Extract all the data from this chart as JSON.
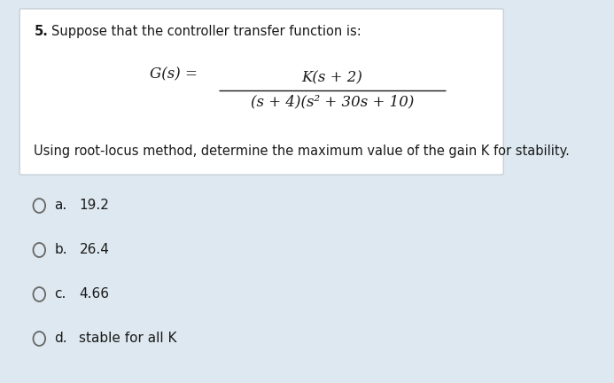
{
  "bg_color": "#dde8f0",
  "box_bg_color": "#ffffff",
  "font_color": "#1a1a1a",
  "circle_color": "#666666",
  "question_number": "5.",
  "question_text": "Suppose that the controller transfer function is:",
  "gs_label": "G(s) =",
  "numerator": "K(s + 2)",
  "denominator": "(s + 4)(s² + 30s + 10)",
  "subtext": "Using root-locus method, determine the maximum value of the gain K for stability.",
  "options": [
    {
      "letter": "a.",
      "text": "19.2"
    },
    {
      "letter": "b.",
      "text": "26.4"
    },
    {
      "letter": "c.",
      "text": "4.66"
    },
    {
      "letter": "d.",
      "text": "stable for all K"
    }
  ],
  "question_fontsize": 10.5,
  "formula_fontsize": 12,
  "subtext_fontsize": 10.5,
  "option_fontsize": 11
}
